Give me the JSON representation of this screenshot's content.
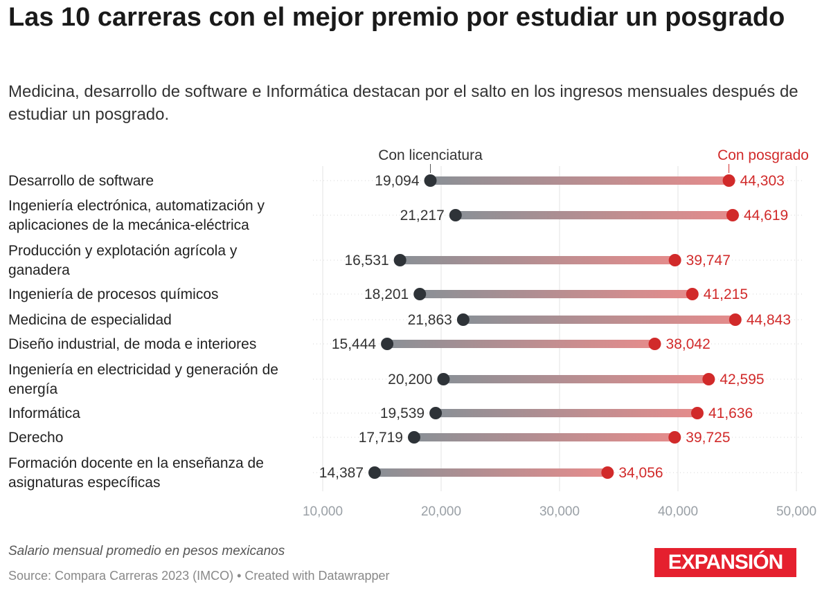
{
  "title": "Las 10 carreras con el mejor premio por estudiar un posgrado",
  "subtitle": "Medicina, desarrollo de software e Informática destacan por el salto en los ingresos mensuales después de estudiar un posgrado.",
  "notes": "Salario mensual promedio en pesos mexicanos",
  "source": "Source: Compara Carreras 2023 (IMCO) • Created with Datawrapper",
  "logo_text": "EXPANSIÓN",
  "colors": {
    "licenciatura": "#2e3338",
    "posgrado": "#d12a2a",
    "bar_start": "#8a9096",
    "bar_end": "#e58c8c",
    "grid": "#e3e3e3",
    "axis_text": "#9aa0a6"
  },
  "chart_data": {
    "type": "dumbbell",
    "series": [
      {
        "name": "Con licenciatura",
        "values": [
          19094,
          21217,
          16531,
          18201,
          21863,
          15444,
          20200,
          19539,
          17719,
          14387
        ]
      },
      {
        "name": "Con posgrado",
        "values": [
          44303,
          44619,
          39747,
          41215,
          44843,
          38042,
          42595,
          41636,
          39725,
          34056
        ]
      }
    ],
    "categories": [
      [
        "Desarrollo de software"
      ],
      [
        "Ingeniería electrónica, automatización y",
        "aplicaciones de la mecánica-eléctrica"
      ],
      [
        "Producción y explotación agrícola y",
        "ganadera"
      ],
      [
        "Ingeniería de procesos químicos"
      ],
      [
        "Medicina de especialidad"
      ],
      [
        "Diseño industrial, de moda e interiores"
      ],
      [
        "Ingeniería en electricidad y generación de",
        "energía"
      ],
      [
        "Informática"
      ],
      [
        "Derecho"
      ],
      [
        "Formación docente en la enseñanza de",
        "asignaturas específicas"
      ]
    ],
    "value_labels_lic": [
      "19,094",
      "21,217",
      "16,531",
      "18,201",
      "21,863",
      "15,444",
      "20,200",
      "19,539",
      "17,719",
      "14,387"
    ],
    "value_labels_pos": [
      "44,303",
      "44,619",
      "39,747",
      "41,215",
      "44,843",
      "38,042",
      "42,595",
      "41,636",
      "39,725",
      "34,056"
    ],
    "xlim": [
      10000,
      50000
    ],
    "xticks": [
      10000,
      20000,
      30000,
      40000,
      50000
    ],
    "xtick_labels": [
      "10,000",
      "20,000",
      "30,000",
      "40,000",
      "50,000"
    ],
    "grid": true
  }
}
